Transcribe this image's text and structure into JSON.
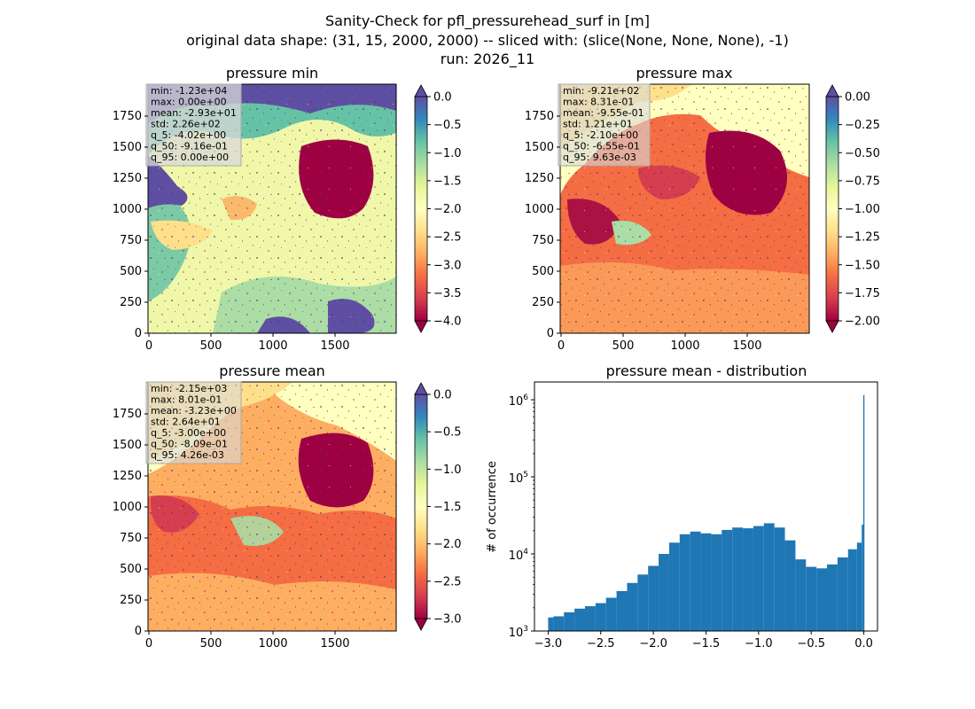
{
  "figure": {
    "title_lines": [
      "Sanity-Check for pfl_pressurehead_surf in [m]",
      "original data shape: (31, 15, 2000, 2000) -- sliced with: (slice(None, None, None), -1)",
      "run: 2026_11"
    ]
  },
  "panels": [
    {
      "id": "pmin",
      "title": "pressure min",
      "colormap": "Spectral",
      "color_limits": [
        -4.0,
        0.0
      ],
      "extend": "both",
      "colorbar_ticks": [
        "0.0",
        "−0.5",
        "−1.0",
        "−1.5",
        "−2.0",
        "−2.5",
        "−3.0",
        "−3.5",
        "−4.0"
      ],
      "x_ticks": [
        "0",
        "500",
        "1000",
        "1500"
      ],
      "y_ticks": [
        "0",
        "250",
        "500",
        "750",
        "1000",
        "1250",
        "1500",
        "1750"
      ],
      "stats": [
        "min: -1.23e+04",
        "max: 0.00e+00",
        "mean: -2.93e+01",
        "std: 2.26e+02",
        "q_5: -4.02e+00",
        "q_50: -9.16e-01",
        "q_95: 0.00e+00"
      ]
    },
    {
      "id": "pmax",
      "title": "pressure max",
      "colormap": "Spectral",
      "color_limits": [
        -2.0,
        0.0
      ],
      "extend": "both",
      "colorbar_ticks": [
        "0.00",
        "−0.25",
        "−0.50",
        "−0.75",
        "−1.00",
        "−1.25",
        "−1.50",
        "−1.75",
        "−2.00"
      ],
      "x_ticks": [
        "0",
        "500",
        "1000",
        "1500"
      ],
      "y_ticks": [
        "0",
        "250",
        "500",
        "750",
        "1000",
        "1250",
        "1500",
        "1750"
      ],
      "stats": [
        "min: -9.21e+02",
        "max: 8.31e-01",
        "mean: -9.55e-01",
        "std: 1.21e+01",
        "q_5: -2.10e+00",
        "q_50: -6.55e-01",
        "q_95: 9.63e-03"
      ]
    },
    {
      "id": "pmean",
      "title": "pressure mean",
      "colormap": "Spectral",
      "color_limits": [
        -3.0,
        0.0
      ],
      "extend": "both",
      "colorbar_ticks": [
        "0.0",
        "−0.5",
        "−1.0",
        "−1.5",
        "−2.0",
        "−2.5",
        "−3.0"
      ],
      "x_ticks": [
        "0",
        "500",
        "1000",
        "1500"
      ],
      "y_ticks": [
        "0",
        "250",
        "500",
        "750",
        "1000",
        "1250",
        "1500",
        "1750"
      ],
      "stats": [
        "min: -2.15e+03",
        "max: 8.01e-01",
        "mean: -3.23e+00",
        "std: 2.64e+01",
        "q_5: -3.00e+00",
        "q_50: -8.09e-01",
        "q_95: 4.26e-03"
      ]
    }
  ],
  "colors": {
    "histogram_bar": "#1f77b4",
    "spectral": [
      "#9e0142",
      "#d53e4f",
      "#f46d43",
      "#fdae61",
      "#fee08b",
      "#ffffbf",
      "#e6f598",
      "#abdda4",
      "#66c2a5",
      "#3288bd",
      "#5e4fa2"
    ],
    "stats_box": "#d9d9d9"
  },
  "chart_data": [
    {
      "type": "heatmap",
      "title": "pressure min",
      "xlim": [
        0,
        2000
      ],
      "ylim": [
        0,
        2000
      ],
      "color_limits": [
        -4.0,
        0.0
      ]
    },
    {
      "type": "heatmap",
      "title": "pressure max",
      "xlim": [
        0,
        2000
      ],
      "ylim": [
        0,
        2000
      ],
      "color_limits": [
        -2.0,
        0.0
      ]
    },
    {
      "type": "heatmap",
      "title": "pressure mean",
      "xlim": [
        0,
        2000
      ],
      "ylim": [
        0,
        2000
      ],
      "color_limits": [
        -3.0,
        0.0
      ]
    },
    {
      "type": "bar",
      "title": "pressure mean - distribution",
      "xlabel": "",
      "ylabel": "# of occurrence",
      "y_scale": "log",
      "xlim": [
        -3.13,
        0.13
      ],
      "ylim": [
        1000,
        1700000
      ],
      "x_ticks": [
        "−3.0",
        "−2.5",
        "−2.0",
        "−1.5",
        "−1.0",
        "−0.5",
        "0.0"
      ],
      "y_ticks": [
        {
          "value": 1000,
          "base": "10",
          "exp": "3"
        },
        {
          "value": 10000,
          "base": "10",
          "exp": "4"
        },
        {
          "value": 100000,
          "base": "10",
          "exp": "5"
        },
        {
          "value": 1000000,
          "base": "10",
          "exp": "6"
        }
      ],
      "bin_range": [
        -3.0,
        0.0
      ],
      "bins": [
        {
          "x": -3.0,
          "count": 1500
        },
        {
          "x": -2.9,
          "count": 1550
        },
        {
          "x": -2.8,
          "count": 1750
        },
        {
          "x": -2.7,
          "count": 1950
        },
        {
          "x": -2.6,
          "count": 2100
        },
        {
          "x": -2.5,
          "count": 2300
        },
        {
          "x": -2.4,
          "count": 2700
        },
        {
          "x": -2.3,
          "count": 3300
        },
        {
          "x": -2.2,
          "count": 4200
        },
        {
          "x": -2.1,
          "count": 5400
        },
        {
          "x": -2.0,
          "count": 7000
        },
        {
          "x": -1.9,
          "count": 10000
        },
        {
          "x": -1.8,
          "count": 14000
        },
        {
          "x": -1.7,
          "count": 18000
        },
        {
          "x": -1.6,
          "count": 19500
        },
        {
          "x": -1.5,
          "count": 18500
        },
        {
          "x": -1.4,
          "count": 18000
        },
        {
          "x": -1.3,
          "count": 20500
        },
        {
          "x": -1.2,
          "count": 22000
        },
        {
          "x": -1.1,
          "count": 21500
        },
        {
          "x": -1.0,
          "count": 23000
        },
        {
          "x": -0.9,
          "count": 25000
        },
        {
          "x": -0.8,
          "count": 22000
        },
        {
          "x": -0.7,
          "count": 15000
        },
        {
          "x": -0.6,
          "count": 8500
        },
        {
          "x": -0.5,
          "count": 6800
        },
        {
          "x": -0.4,
          "count": 6500
        },
        {
          "x": -0.3,
          "count": 7300
        },
        {
          "x": -0.2,
          "count": 9000
        },
        {
          "x": -0.1,
          "count": 11500
        },
        {
          "x": -0.03,
          "count": 14000
        },
        {
          "x": -0.01,
          "count": 24000
        },
        {
          "x": 0.0,
          "count": 1150000
        }
      ]
    }
  ]
}
